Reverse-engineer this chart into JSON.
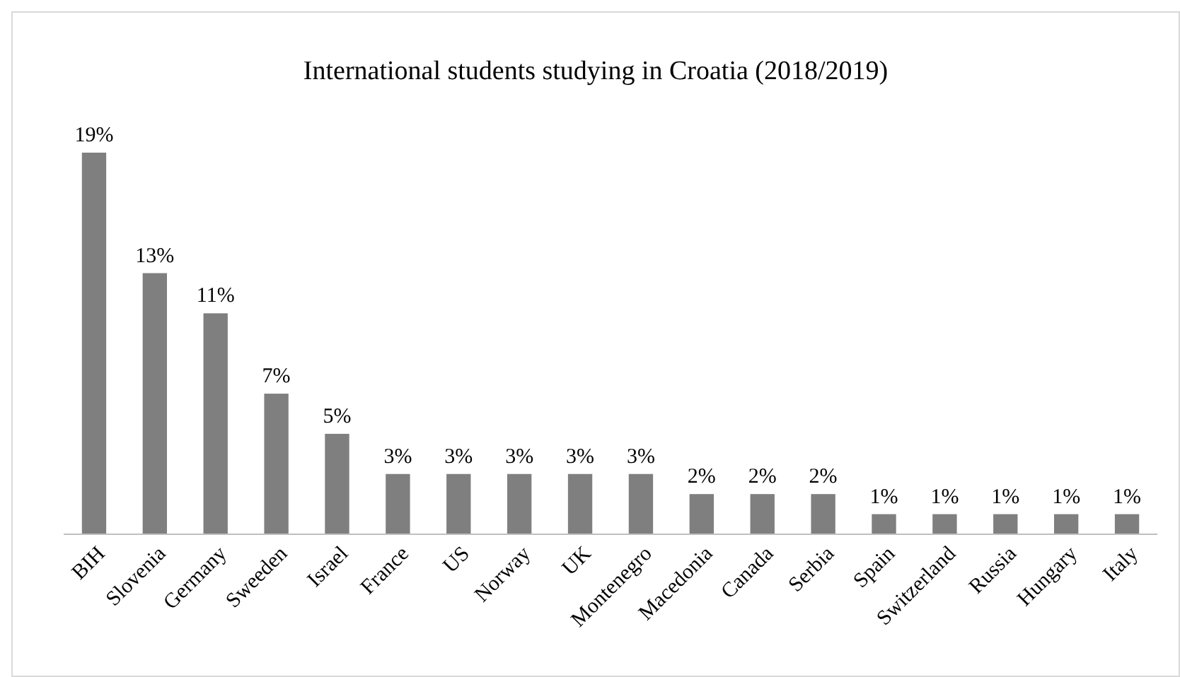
{
  "chart_data": {
    "type": "bar",
    "title": "International students studying in Croatia (2018/2019)",
    "categories": [
      "BIH",
      "Slovenia",
      "Germany",
      "Sweeden",
      "Israel",
      "France",
      "US",
      "Norway",
      "UK",
      "Montenegro",
      "Macedonia",
      "Canada",
      "Serbia",
      "Spain",
      "Switzerland",
      "Russia",
      "Hungary",
      "Italy"
    ],
    "values": [
      19,
      13,
      11,
      7,
      5,
      3,
      3,
      3,
      3,
      3,
      2,
      2,
      2,
      1,
      1,
      1,
      1,
      1
    ],
    "value_labels": [
      "19%",
      "13%",
      "11%",
      "7%",
      "5%",
      "3%",
      "3%",
      "3%",
      "3%",
      "3%",
      "2%",
      "2%",
      "2%",
      "1%",
      "1%",
      "1%",
      "1%",
      "1%"
    ],
    "color": "#7f7f7f"
  }
}
